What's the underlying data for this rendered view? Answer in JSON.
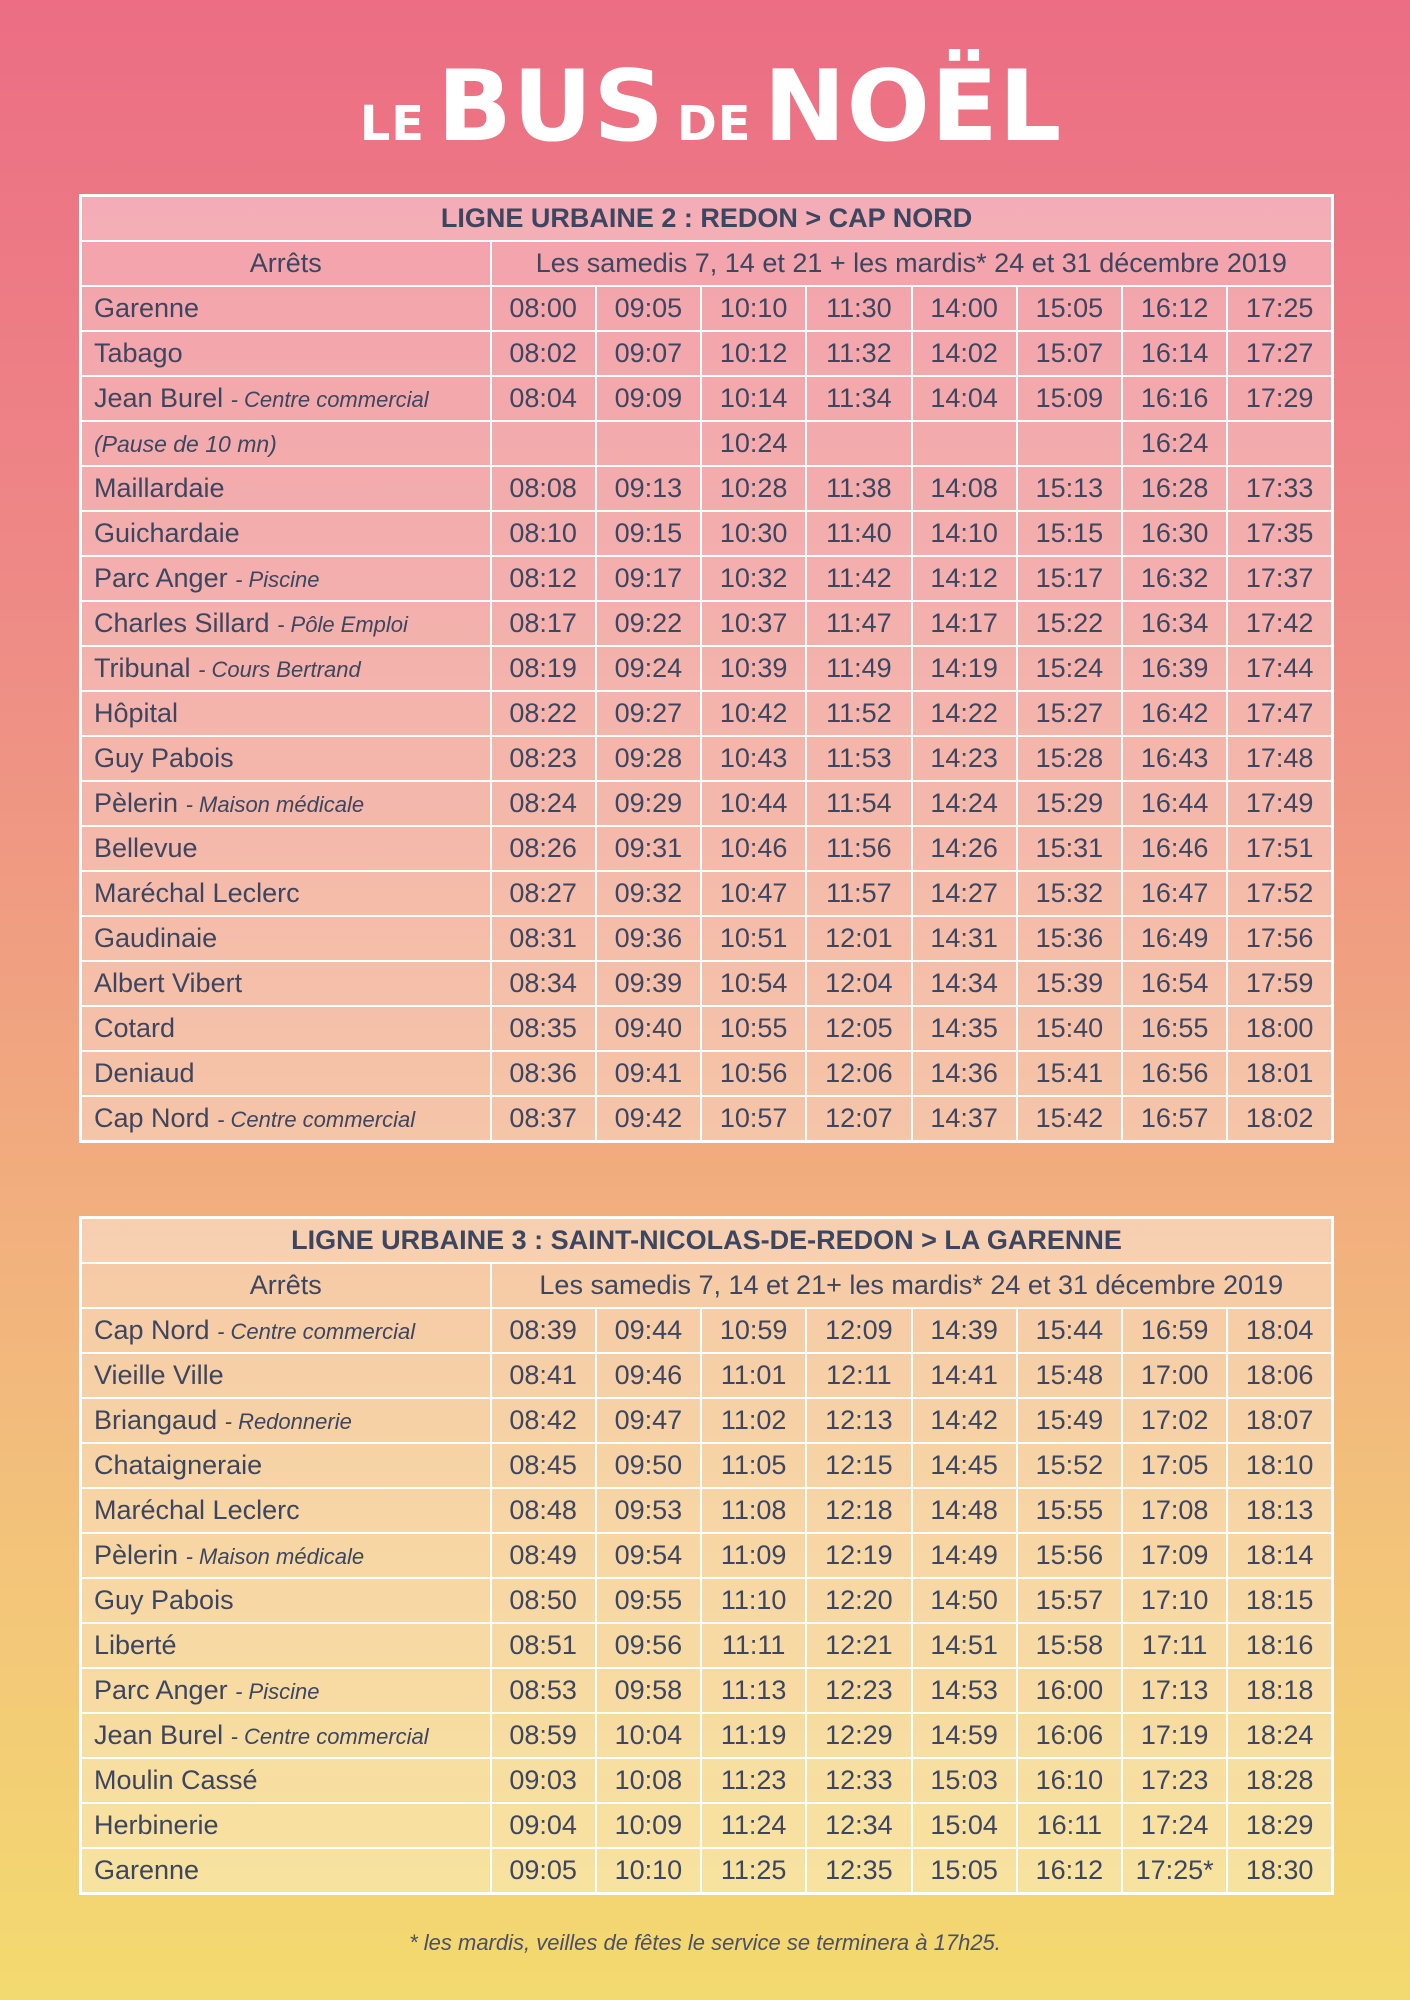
{
  "header": {
    "title": [
      "LE",
      "BUS",
      "DE",
      "NOËL"
    ]
  },
  "tables": [
    {
      "title": "LIGNE URBAINE 2 : REDON > CAP NORD",
      "columns": [
        "Arrêts",
        "Les samedis 7, 14 et 21 + les mardis* 24 et 31 décembre 2019"
      ],
      "rows": [
        {
          "stop": "Garenne",
          "times": [
            "08:00",
            "09:05",
            "10:10",
            "11:30",
            "14:00",
            "15:05",
            "16:12",
            "17:25"
          ]
        },
        {
          "stop": "Tabago",
          "times": [
            "08:02",
            "09:07",
            "10:12",
            "11:32",
            "14:02",
            "15:07",
            "16:14",
            "17:27"
          ]
        },
        {
          "stop": "Jean Burel",
          "detail": "- Centre commercial",
          "times": [
            "08:04",
            "09:09",
            "10:14",
            "11:34",
            "14:04",
            "15:09",
            "16:16",
            "17:29"
          ]
        },
        {
          "note": "(Pause de 10 mn)",
          "times": [
            null,
            null,
            "10:24",
            null,
            null,
            null,
            "16:24",
            null
          ]
        },
        {
          "stop": "Maillardaie",
          "times": [
            "08:08",
            "09:13",
            "10:28",
            "11:38",
            "14:08",
            "15:13",
            "16:28",
            "17:33"
          ]
        },
        {
          "stop": "Guichardaie",
          "times": [
            "08:10",
            "09:15",
            "10:30",
            "11:40",
            "14:10",
            "15:15",
            "16:30",
            "17:35"
          ]
        },
        {
          "stop": "Parc Anger",
          "detail": "- Piscine",
          "times": [
            "08:12",
            "09:17",
            "10:32",
            "11:42",
            "14:12",
            "15:17",
            "16:32",
            "17:37"
          ]
        },
        {
          "stop": "Charles Sillard",
          "detail": "- Pôle Emploi",
          "times": [
            "08:17",
            "09:22",
            "10:37",
            "11:47",
            "14:17",
            "15:22",
            "16:34",
            "17:42"
          ]
        },
        {
          "stop": "Tribunal",
          "detail": "- Cours Bertrand",
          "times": [
            "08:19",
            "09:24",
            "10:39",
            "11:49",
            "14:19",
            "15:24",
            "16:39",
            "17:44"
          ]
        },
        {
          "stop": "Hôpital",
          "times": [
            "08:22",
            "09:27",
            "10:42",
            "11:52",
            "14:22",
            "15:27",
            "16:42",
            "17:47"
          ]
        },
        {
          "stop": "Guy Pabois",
          "times": [
            "08:23",
            "09:28",
            "10:43",
            "11:53",
            "14:23",
            "15:28",
            "16:43",
            "17:48"
          ]
        },
        {
          "stop": "Pèlerin",
          "detail": "- Maison médicale",
          "times": [
            "08:24",
            "09:29",
            "10:44",
            "11:54",
            "14:24",
            "15:29",
            "16:44",
            "17:49"
          ]
        },
        {
          "stop": "Bellevue",
          "times": [
            "08:26",
            "09:31",
            "10:46",
            "11:56",
            "14:26",
            "15:31",
            "16:46",
            "17:51"
          ]
        },
        {
          "stop": "Maréchal Leclerc",
          "times": [
            "08:27",
            "09:32",
            "10:47",
            "11:57",
            "14:27",
            "15:32",
            "16:47",
            "17:52"
          ]
        },
        {
          "stop": "Gaudinaie",
          "times": [
            "08:31",
            "09:36",
            "10:51",
            "12:01",
            "14:31",
            "15:36",
            "16:49",
            "17:56"
          ]
        },
        {
          "stop": "Albert Vibert",
          "times": [
            "08:34",
            "09:39",
            "10:54",
            "12:04",
            "14:34",
            "15:39",
            "16:54",
            "17:59"
          ]
        },
        {
          "stop": "Cotard",
          "times": [
            "08:35",
            "09:40",
            "10:55",
            "12:05",
            "14:35",
            "15:40",
            "16:55",
            "18:00"
          ]
        },
        {
          "stop": "Deniaud",
          "times": [
            "08:36",
            "09:41",
            "10:56",
            "12:06",
            "14:36",
            "15:41",
            "16:56",
            "18:01"
          ]
        },
        {
          "stop": "Cap Nord",
          "detail": "- Centre commercial",
          "times": [
            "08:37",
            "09:42",
            "10:57",
            "12:07",
            "14:37",
            "15:42",
            "16:57",
            "18:02"
          ]
        }
      ]
    },
    {
      "title": "LIGNE URBAINE 3 : SAINT-NICOLAS-DE-REDON > LA GARENNE",
      "columns": [
        "Arrêts",
        "Les samedis 7, 14 et 21+ les mardis* 24 et 31 décembre 2019"
      ],
      "rows": [
        {
          "stop": "Cap Nord",
          "detail": "- Centre commercial",
          "times": [
            "08:39",
            "09:44",
            "10:59",
            "12:09",
            "14:39",
            "15:44",
            "16:59",
            "18:04"
          ]
        },
        {
          "stop": "Vieille Ville",
          "times": [
            "08:41",
            "09:46",
            "11:01",
            "12:11",
            "14:41",
            "15:48",
            "17:00",
            "18:06"
          ]
        },
        {
          "stop": "Briangaud",
          "detail": "- Redonnerie",
          "times": [
            "08:42",
            "09:47",
            "11:02",
            "12:13",
            "14:42",
            "15:49",
            "17:02",
            "18:07"
          ]
        },
        {
          "stop": "Chataigneraie",
          "times": [
            "08:45",
            "09:50",
            "11:05",
            "12:15",
            "14:45",
            "15:52",
            "17:05",
            "18:10"
          ]
        },
        {
          "stop": "Maréchal Leclerc",
          "times": [
            "08:48",
            "09:53",
            "11:08",
            "12:18",
            "14:48",
            "15:55",
            "17:08",
            "18:13"
          ]
        },
        {
          "stop": "Pèlerin",
          "detail": "- Maison médicale",
          "times": [
            "08:49",
            "09:54",
            "11:09",
            "12:19",
            "14:49",
            "15:56",
            "17:09",
            "18:14"
          ]
        },
        {
          "stop": "Guy Pabois",
          "times": [
            "08:50",
            "09:55",
            "11:10",
            "12:20",
            "14:50",
            "15:57",
            "17:10",
            "18:15"
          ]
        },
        {
          "stop": "Liberté",
          "times": [
            "08:51",
            "09:56",
            "11:11",
            "12:21",
            "14:51",
            "15:58",
            "17:11",
            "18:16"
          ]
        },
        {
          "stop": "Parc Anger",
          "detail": "- Piscine",
          "times": [
            "08:53",
            "09:58",
            "11:13",
            "12:23",
            "14:53",
            "16:00",
            "17:13",
            "18:18"
          ]
        },
        {
          "stop": "Jean Burel",
          "detail": "- Centre commercial",
          "times": [
            "08:59",
            "10:04",
            "11:19",
            "12:29",
            "14:59",
            "16:06",
            "17:19",
            "18:24"
          ]
        },
        {
          "stop": "Moulin Cassé",
          "times": [
            "09:03",
            "10:08",
            "11:23",
            "12:33",
            "15:03",
            "16:10",
            "17:23",
            "18:28"
          ]
        },
        {
          "stop": "Herbinerie",
          "times": [
            "09:04",
            "10:09",
            "11:24",
            "12:34",
            "15:04",
            "16:11",
            "17:24",
            "18:29"
          ]
        },
        {
          "stop": "Garenne",
          "times": [
            "09:05",
            "10:10",
            "11:25",
            "12:35",
            "15:05",
            "16:12",
            "17:25*",
            "18:30"
          ]
        }
      ]
    }
  ],
  "footnote": "* les mardis, veilles de fêtes le service se terminera à 17h25."
}
